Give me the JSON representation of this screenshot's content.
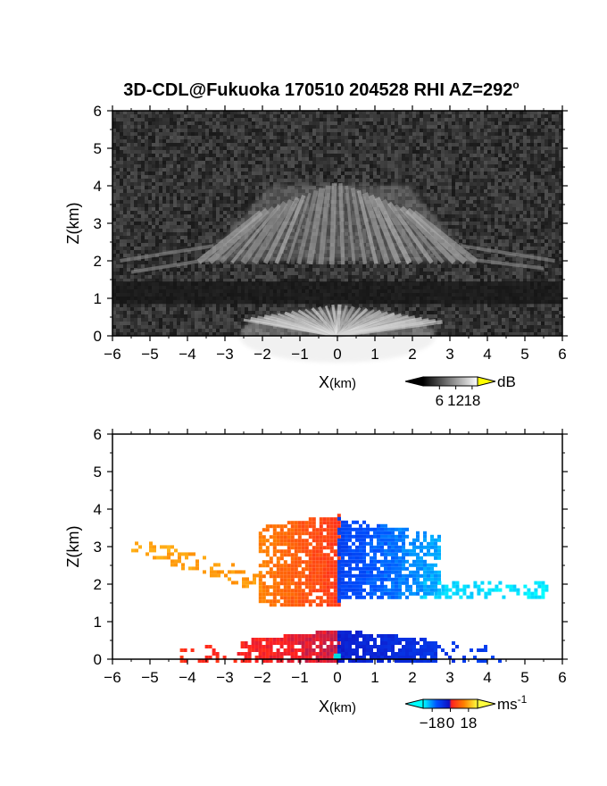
{
  "title": "3D-CDL@Fukuoka 170510 204528 RHI AZ=292",
  "title_degree": "o",
  "charts": [
    {
      "type": "heatmap",
      "quantity": "backscatter intensity",
      "xlabel_main": "X",
      "xlabel_unit": "(km)",
      "ylabel": "Z(km)",
      "xlim": [
        -6,
        6
      ],
      "ylim": [
        0,
        6
      ],
      "xticks": [
        "-6",
        "-5",
        "-4",
        "-3",
        "-2",
        "-1",
        "0",
        "1",
        "2",
        "3",
        "4",
        "5",
        "6"
      ],
      "yticks": [
        "0",
        "1",
        "2",
        "3",
        "4",
        "5",
        "6"
      ],
      "background": "noisy dark gray",
      "features": [
        {
          "kind": "fan of radial bright streaks",
          "z_range": [
            1.9,
            4.1
          ],
          "x_range": [
            -3.7,
            3.7
          ],
          "level_db": 14
        },
        {
          "kind": "dark layer",
          "z_range": [
            0.85,
            1.45
          ],
          "x_range": [
            -6,
            6
          ]
        },
        {
          "kind": "bright near-ground fan",
          "z_range": [
            0,
            0.85
          ],
          "x_range": [
            -2.5,
            2.8
          ],
          "level_db": 16
        }
      ],
      "colorbar": {
        "unit": "dB",
        "tick_labels": [
          "6",
          "12",
          "18"
        ],
        "tick_values": [
          6,
          12,
          18
        ],
        "range": [
          0,
          20
        ],
        "colors": [
          "#000000",
          "#ffffff"
        ],
        "overflow_color": "#ffff00"
      }
    },
    {
      "type": "heatmap",
      "quantity": "radial velocity",
      "xlabel_main": "X",
      "xlabel_unit": "(km)",
      "ylabel": "Z(km)",
      "xlim": [
        -6,
        6
      ],
      "ylim": [
        0,
        6
      ],
      "xticks": [
        "-6",
        "-5",
        "-4",
        "-3",
        "-2",
        "-1",
        "0",
        "1",
        "2",
        "3",
        "4",
        "5",
        "6"
      ],
      "yticks": [
        "0",
        "1",
        "2",
        "3",
        "4",
        "5",
        "6"
      ],
      "regions": [
        {
          "name": "upper-left",
          "x_range": [
            -2.1,
            0
          ],
          "z_range": [
            1.4,
            3.9
          ],
          "velocity_ms": [
            8,
            16
          ]
        },
        {
          "name": "upper-right",
          "x_range": [
            0,
            2.7
          ],
          "z_range": [
            1.6,
            3.8
          ],
          "velocity_ms": [
            -14,
            -22
          ]
        },
        {
          "name": "left-tail",
          "x_range": [
            -5.5,
            -2.1
          ],
          "z_range": [
            1.8,
            3.2
          ],
          "velocity_ms": [
            18,
            20
          ]
        },
        {
          "name": "right-tail",
          "x_range": [
            2.2,
            5.6
          ],
          "z_range": [
            1.7,
            2.1
          ],
          "velocity_ms": [
            -24,
            -26
          ]
        },
        {
          "name": "lower-left",
          "x_range": [
            -4.2,
            0
          ],
          "z_range": [
            0,
            0.85
          ],
          "velocity_ms": [
            3,
            8
          ]
        },
        {
          "name": "lower-right",
          "x_range": [
            0,
            4.3
          ],
          "z_range": [
            0,
            0.85
          ],
          "velocity_ms": [
            -8,
            -14
          ]
        }
      ],
      "colorbar": {
        "unit": "ms",
        "unit_exponent": "-1",
        "tick_labels": [
          "−18",
          "0",
          "18"
        ],
        "tick_values": [
          -18,
          0,
          18
        ],
        "range": [
          -27,
          27
        ],
        "colors": [
          "#00ffff",
          "#0050ff",
          "#1010c0",
          "#ff2020",
          "#ff8000",
          "#ffff40"
        ]
      }
    }
  ]
}
